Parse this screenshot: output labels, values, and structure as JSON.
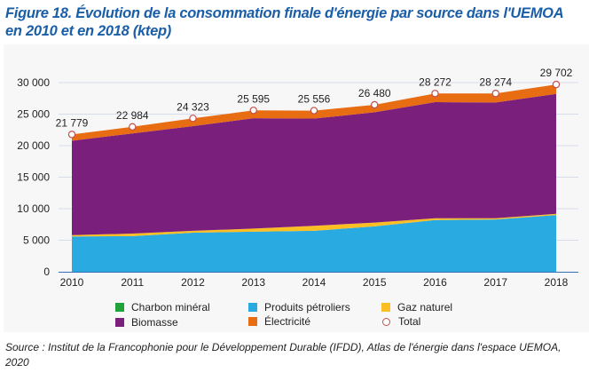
{
  "title": "Figure 18. Évolution de la consommation finale d'énergie par source dans l'UEMOA en 2010 et en 2018 (ktep)",
  "source": "Source : Institut de la Francophonie pour le Développement Durable (IFDD), Atlas de l'énergie dans l'espace UEMOA, 2020",
  "chart_data": {
    "type": "area",
    "stacked": true,
    "title": "Évolution de la consommation finale d'énergie par source dans l'UEMOA en 2010 et en 2018 (ktep)",
    "xlabel": "",
    "ylabel": "",
    "x": [
      "2010",
      "2011",
      "2012",
      "2013",
      "2014",
      "2015",
      "2016",
      "2017",
      "2018"
    ],
    "ylim": [
      0,
      30000
    ],
    "yticks": [
      0,
      5000,
      10000,
      15000,
      20000,
      25000,
      30000
    ],
    "ytick_labels": [
      "0",
      "5 000",
      "10 000",
      "15 000",
      "20 000",
      "25 000",
      "30 000"
    ],
    "grid": true,
    "legend_position": "bottom",
    "series": [
      {
        "name": "Charbon minéral",
        "color": "#1fa23a",
        "values": [
          0,
          0,
          0,
          0,
          0,
          0,
          0,
          0,
          0
        ]
      },
      {
        "name": "Produits pétroliers",
        "color": "#29abe2",
        "values": [
          5600,
          5650,
          6200,
          6350,
          6500,
          7200,
          8200,
          8300,
          9000
        ]
      },
      {
        "name": "Gaz naturel",
        "color": "#fbbf24",
        "values": [
          200,
          400,
          300,
          500,
          800,
          600,
          300,
          200,
          200
        ]
      },
      {
        "name": "Biomasse",
        "color": "#7b1f7d",
        "values": [
          14980,
          15900,
          16600,
          17500,
          17000,
          17500,
          18400,
          18350,
          19000
        ]
      },
      {
        "name": "Électricité",
        "color": "#e86c12",
        "values": [
          999,
          1034,
          1223,
          1245,
          1256,
          1180,
          1372,
          1424,
          1502
        ]
      },
      {
        "name": "Total",
        "type": "point",
        "color": "#c0504d",
        "values": [
          21779,
          22984,
          24323,
          25595,
          25556,
          26480,
          28272,
          28274,
          29702
        ]
      }
    ],
    "data_labels": [
      "21 779",
      "22 984",
      "24 323",
      "25 595",
      "25 556",
      "26 480",
      "28 272",
      "28 274",
      "29 702"
    ]
  },
  "legend": [
    {
      "label": "Charbon minéral",
      "color": "#1fa23a",
      "shape": "square"
    },
    {
      "label": "Produits pétroliers",
      "color": "#29abe2",
      "shape": "square"
    },
    {
      "label": "Gaz naturel",
      "color": "#fbbf24",
      "shape": "square"
    },
    {
      "label": "Biomasse",
      "color": "#7b1f7d",
      "shape": "square"
    },
    {
      "label": "Électricité",
      "color": "#e86c12",
      "shape": "square"
    },
    {
      "label": "Total",
      "color": "#c0504d",
      "shape": "circle"
    }
  ]
}
